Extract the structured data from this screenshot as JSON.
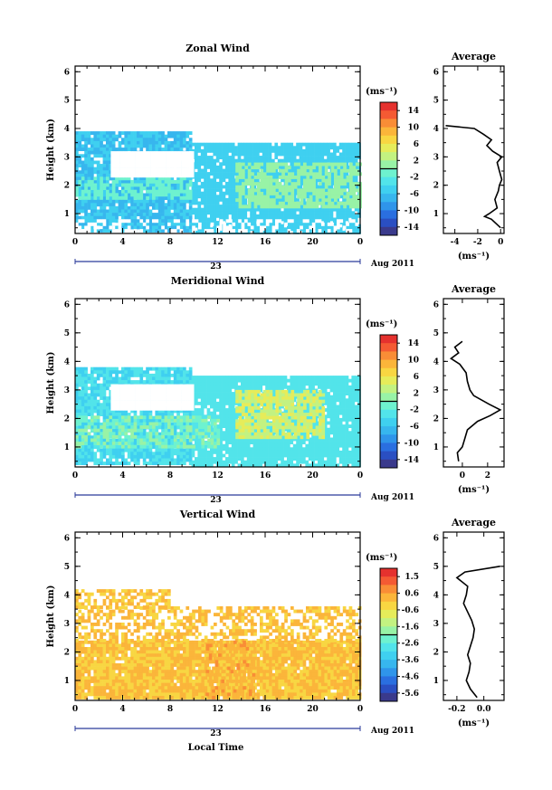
{
  "figure": {
    "panels": [
      {
        "title": "Zonal Wind",
        "ylabel": "Height (km)",
        "yticks": [
          "1",
          "2",
          "3",
          "4",
          "5",
          "6"
        ],
        "xticks": [
          "0",
          "4",
          "8",
          "12",
          "16",
          "20",
          "0"
        ],
        "day_label": "23",
        "date_label": "Aug 2011",
        "colorbar_unit": "(ms⁻¹)",
        "colorbar_ticks": [
          "14",
          "10",
          "6",
          "2",
          "-2",
          "-6",
          "-10",
          "-14"
        ],
        "avg_title": "Average",
        "avg_xticks": [
          "-4",
          "-2",
          "0"
        ],
        "avg_xlabel": "(ms⁻¹)"
      },
      {
        "title": "Meridional Wind",
        "ylabel": "Height (km)",
        "yticks": [
          "1",
          "2",
          "3",
          "4",
          "5",
          "6"
        ],
        "xticks": [
          "0",
          "4",
          "8",
          "12",
          "16",
          "20",
          "0"
        ],
        "day_label": "23",
        "date_label": "Aug 2011",
        "colorbar_unit": "(ms⁻¹)",
        "colorbar_ticks": [
          "14",
          "10",
          "6",
          "2",
          "-2",
          "-6",
          "-10",
          "-14"
        ],
        "avg_title": "Average",
        "avg_xticks": [
          "0",
          "2"
        ],
        "avg_xlabel": "(ms⁻¹)"
      },
      {
        "title": "Vertical Wind",
        "ylabel": "Height (km)",
        "yticks": [
          "1",
          "2",
          "3",
          "4",
          "5",
          "6"
        ],
        "xticks": [
          "0",
          "4",
          "8",
          "12",
          "16",
          "20",
          "0"
        ],
        "day_label": "23",
        "date_label": "Aug 2011",
        "xlabel": "Local Time",
        "colorbar_unit": "(ms⁻¹)",
        "colorbar_ticks": [
          "1.5",
          "0.6",
          "-0.6",
          "-1.6",
          "-2.6",
          "-3.6",
          "-4.6",
          "-5.6"
        ],
        "avg_title": "Average",
        "avg_xticks": [
          "-0.2",
          "0.0"
        ],
        "avg_xlabel": "(ms⁻¹)"
      }
    ]
  },
  "colormap": [
    "#3a3a8c",
    "#2a4fc2",
    "#2a6fe0",
    "#2f95ea",
    "#37b6ee",
    "#3fd0f0",
    "#52e4ea",
    "#6ef2cf",
    "#98f3a6",
    "#c3f281",
    "#e6ec5a",
    "#f8d642",
    "#fbb53a",
    "#f98d36",
    "#f45a33",
    "#e5312e"
  ],
  "chart_data": [
    {
      "type": "heatmap",
      "title": "Zonal Wind",
      "xlabel": "",
      "ylabel": "Height (km)",
      "xlim": [
        0,
        24
      ],
      "ylim": [
        0.3,
        6.2
      ],
      "clim": [
        -16,
        16
      ],
      "layers": [
        {
          "x0": 0,
          "x1": 9.8,
          "y0": 0.4,
          "y1": 3.9,
          "value": -6,
          "density": 0.9
        },
        {
          "x0": 9.8,
          "x1": 24,
          "y0": 0.4,
          "y1": 3.5,
          "value": -5,
          "density": 0.92
        },
        {
          "x0": 0,
          "x1": 9.8,
          "y0": 1.5,
          "y1": 2.3,
          "value": -1,
          "density": 0.55
        },
        {
          "x0": 13.5,
          "x1": 24,
          "y0": 1.3,
          "y1": 2.8,
          "value": 1,
          "density": 0.7
        },
        {
          "x0": 3,
          "x1": 9.8,
          "y0": 2.3,
          "y1": 3.2,
          "value": 99,
          "density": 1.0
        },
        {
          "x0": 0,
          "x1": 24,
          "y0": 0.4,
          "y1": 0.8,
          "value": 99,
          "density": 0.35
        }
      ],
      "profile": {
        "title": "Average",
        "xlim": [
          -5,
          0.3
        ],
        "xticks": [
          -4,
          -2,
          0
        ],
        "height": [
          0.5,
          0.8,
          0.9,
          1.0,
          1.2,
          1.5,
          1.8,
          2.0,
          2.2,
          2.5,
          2.8,
          3.0,
          3.2,
          3.4,
          3.6,
          3.8,
          4.0,
          4.1
        ],
        "value": [
          0.0,
          -0.8,
          -1.4,
          -1.0,
          -0.3,
          -0.5,
          -0.2,
          -0.1,
          0.1,
          -0.1,
          -0.3,
          0.1,
          -0.7,
          -1.2,
          -0.8,
          -1.5,
          -2.3,
          -4.8
        ]
      }
    },
    {
      "type": "heatmap",
      "title": "Meridional Wind",
      "xlabel": "",
      "ylabel": "Height (km)",
      "xlim": [
        0,
        24
      ],
      "ylim": [
        0.3,
        6.2
      ],
      "clim": [
        -16,
        16
      ],
      "layers": [
        {
          "x0": 0,
          "x1": 9.8,
          "y0": 0.4,
          "y1": 3.8,
          "value": -4,
          "density": 0.9
        },
        {
          "x0": 9.8,
          "x1": 24,
          "y0": 0.4,
          "y1": 3.5,
          "value": -3,
          "density": 0.92
        },
        {
          "x0": 0,
          "x1": 12,
          "y0": 1.0,
          "y1": 2.1,
          "value": 0,
          "density": 0.6
        },
        {
          "x0": 13.5,
          "x1": 21,
          "y0": 1.3,
          "y1": 3.0,
          "value": 4,
          "density": 0.8
        },
        {
          "x0": 3,
          "x1": 9.8,
          "y0": 2.3,
          "y1": 3.2,
          "value": 99,
          "density": 1.0
        }
      ],
      "profile": {
        "title": "Average",
        "xlim": [
          -1.5,
          3.3
        ],
        "xticks": [
          0,
          2
        ],
        "height": [
          0.5,
          0.8,
          1.0,
          1.3,
          1.6,
          1.9,
          2.1,
          2.3,
          2.5,
          2.8,
          3.0,
          3.3,
          3.6,
          3.9,
          4.1,
          4.3,
          4.5,
          4.7
        ],
        "value": [
          -0.3,
          -0.4,
          0.0,
          0.2,
          0.4,
          1.2,
          2.2,
          3.0,
          2.1,
          0.9,
          0.6,
          0.4,
          0.3,
          -0.2,
          -0.9,
          -0.3,
          -0.6,
          0.0
        ]
      }
    },
    {
      "type": "heatmap",
      "title": "Vertical Wind",
      "xlabel": "Local Time",
      "ylabel": "Height (km)",
      "xlim": [
        0,
        24
      ],
      "ylim": [
        0.3,
        6.2
      ],
      "clim": [
        -6.6,
        2.4
      ],
      "layers": [
        {
          "x0": 0,
          "x1": 24,
          "y0": 0.4,
          "y1": 2.4,
          "value": 0.2,
          "density": 0.95
        },
        {
          "x0": 0,
          "x1": 24,
          "y0": 2.4,
          "y1": 3.6,
          "value": 0.2,
          "density": 0.55
        },
        {
          "x0": 0,
          "x1": 8,
          "y0": 3.6,
          "y1": 4.2,
          "value": 0.2,
          "density": 0.6
        },
        {
          "x0": 11,
          "x1": 15,
          "y0": 0.4,
          "y1": 2.4,
          "value": 0.6,
          "density": 0.4
        }
      ],
      "profile": {
        "title": "Average",
        "xlim": [
          -0.3,
          0.15
        ],
        "xticks": [
          -0.2,
          0.0
        ],
        "height": [
          0.4,
          0.7,
          1.0,
          1.3,
          1.6,
          1.9,
          2.2,
          2.5,
          2.8,
          3.1,
          3.4,
          3.7,
          4.0,
          4.3,
          4.6,
          4.8,
          5.0
        ],
        "value": [
          -0.05,
          -0.1,
          -0.13,
          -0.11,
          -0.1,
          -0.12,
          -0.1,
          -0.08,
          -0.07,
          -0.09,
          -0.12,
          -0.15,
          -0.13,
          -0.12,
          -0.2,
          -0.14,
          0.12
        ]
      }
    }
  ]
}
